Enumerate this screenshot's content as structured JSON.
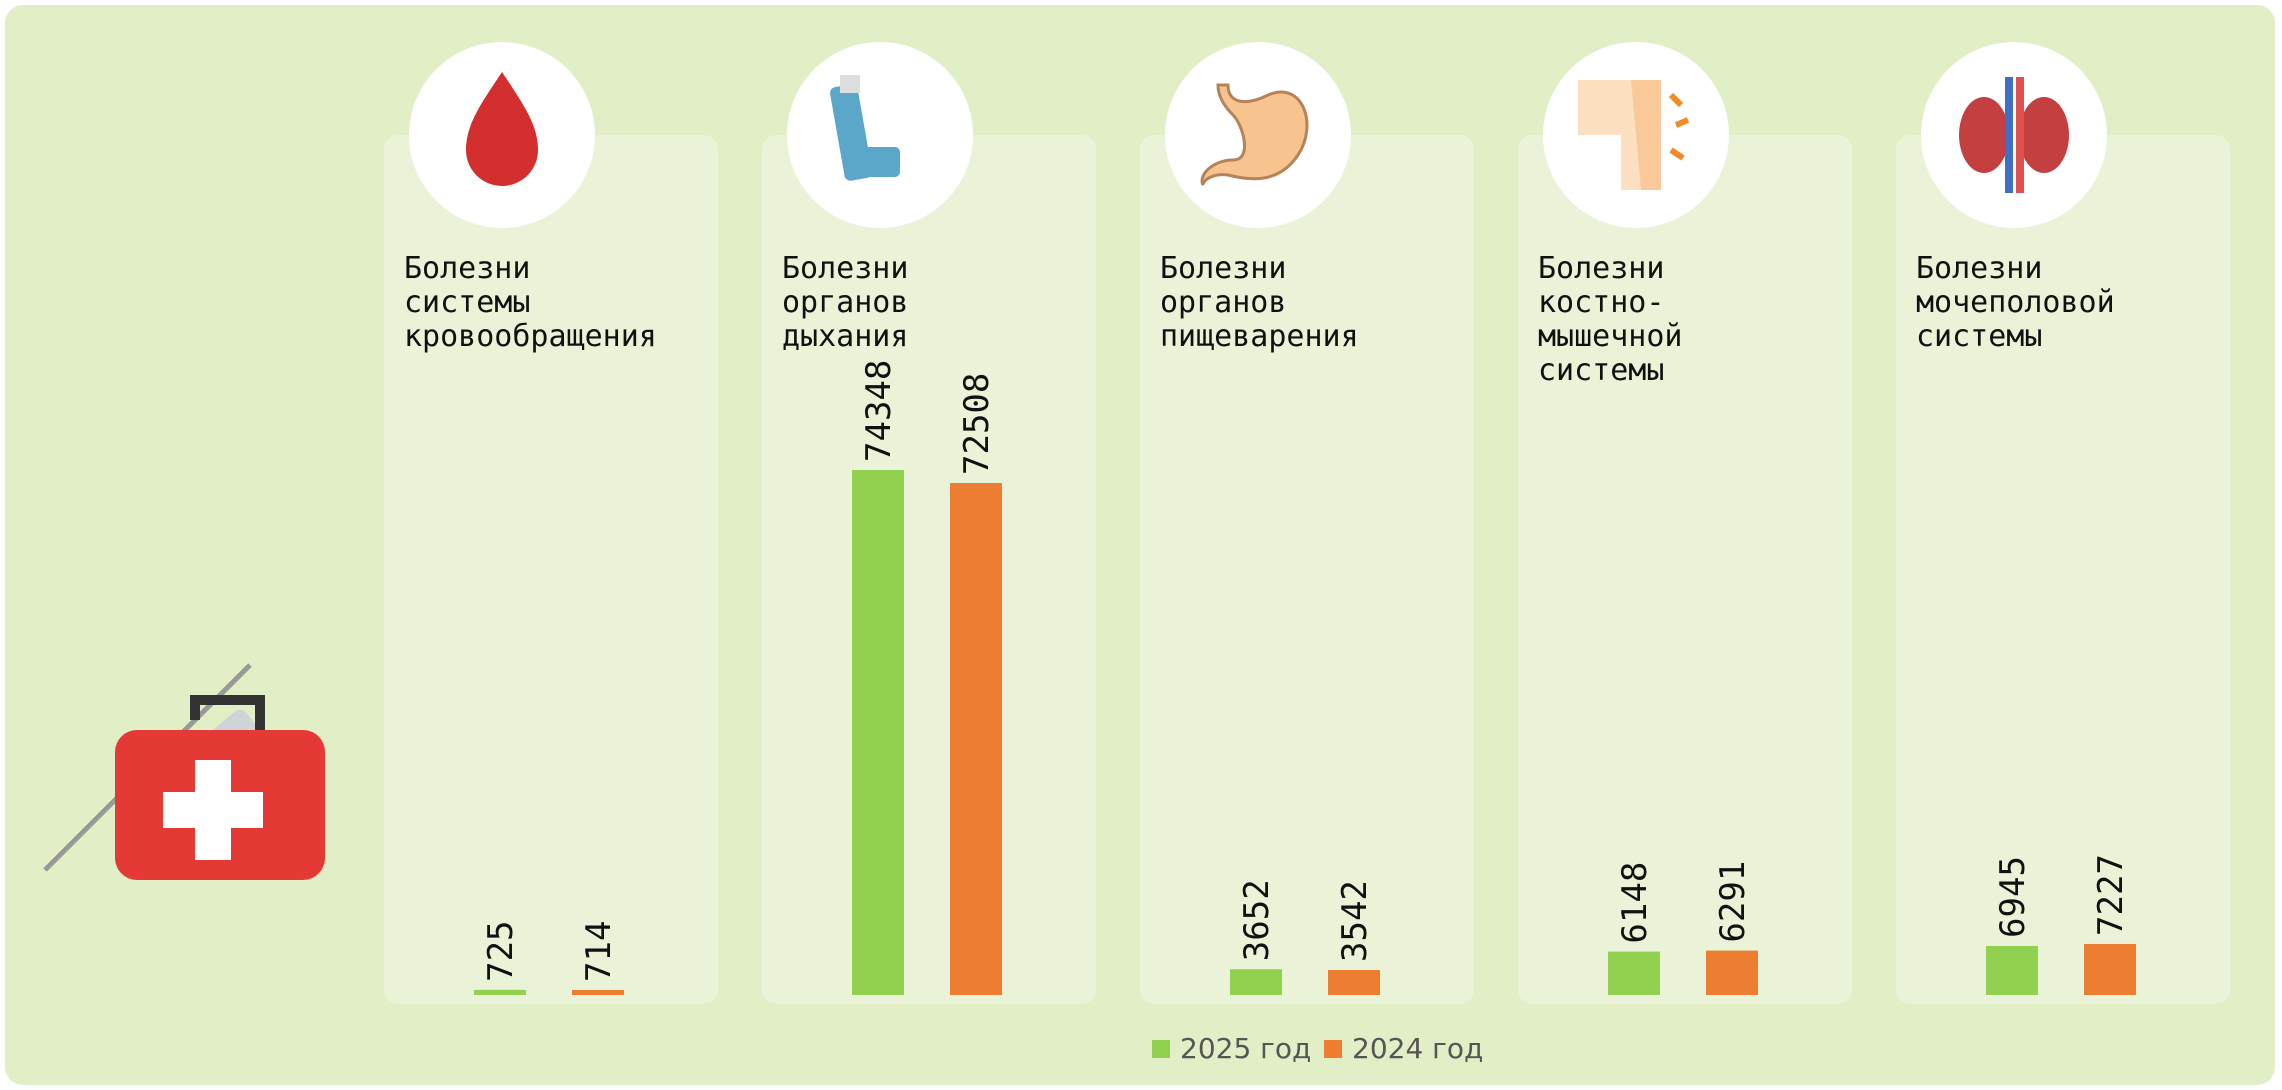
{
  "chart_data": {
    "type": "bar",
    "categories": [
      "Болезни\nсистемы\nкровообращения",
      "Болезни\nорганов\nдыхания",
      "Болезни\nорганов\nпищеварения",
      "Болезни\nкостно-\nмышечной\nсистемы",
      "Болезни\nмочеполовой\nсистемы"
    ],
    "series": [
      {
        "name": "2025 год",
        "color": "#92d050",
        "values": [
          725,
          74348,
          3652,
          6148,
          6945
        ]
      },
      {
        "name": "2024 год",
        "color": "#ed7d31",
        "values": [
          714,
          72508,
          3542,
          6291,
          7227
        ]
      }
    ]
  }
}
